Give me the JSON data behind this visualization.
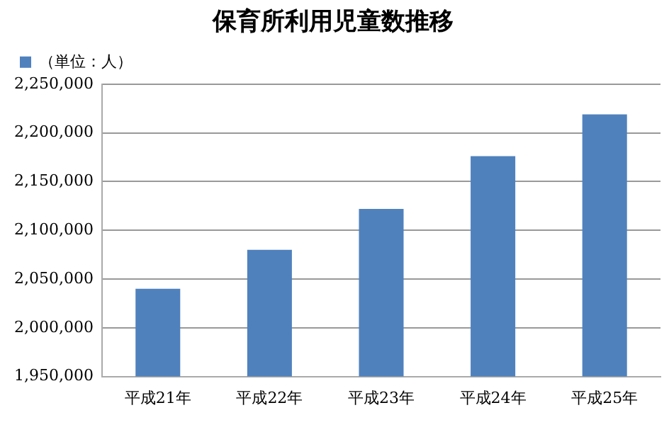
{
  "chart_data": {
    "type": "bar",
    "title": "保育所利用児童数推移",
    "categories": [
      "平成21年",
      "平成22年",
      "平成23年",
      "平成24年",
      "平成25年"
    ],
    "series": [
      {
        "name": "（単位：人）",
        "color": "#4f81bd",
        "values": [
          2040000,
          2080000,
          2122000,
          2176000,
          2219000
        ]
      }
    ],
    "ylim": [
      1950000,
      2250000
    ],
    "yticks": [
      {
        "value": 1950000,
        "label": "1,950,000"
      },
      {
        "value": 2000000,
        "label": "2,000,000"
      },
      {
        "value": 2050000,
        "label": "2,050,000"
      },
      {
        "value": 2100000,
        "label": "2,100,000"
      },
      {
        "value": 2150000,
        "label": "2,150,000"
      },
      {
        "value": 2200000,
        "label": "2,200,000"
      },
      {
        "value": 2250000,
        "label": "2,250,000"
      }
    ],
    "grid": "y",
    "legend": "top left"
  }
}
